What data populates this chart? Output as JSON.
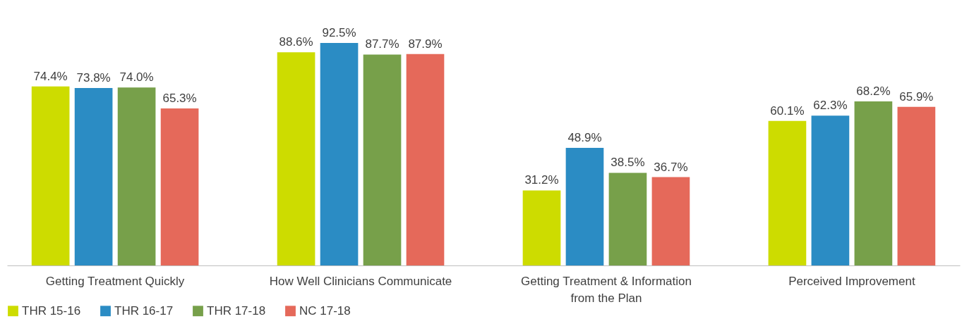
{
  "chart_data": {
    "type": "bar",
    "categories": [
      "Getting Treatment Quickly",
      "How Well Clinicians Communicate",
      "Getting Treatment & Information\nfrom the Plan",
      "Perceived Improvement"
    ],
    "series": [
      {
        "name": "THR 15-16",
        "color": "#cddc00",
        "values": [
          74.4,
          88.6,
          31.2,
          60.1
        ],
        "value_labels": [
          "74.4%",
          "88.6%",
          "31.2%",
          "60.1%"
        ]
      },
      {
        "name": "THR 16-17",
        "color": "#2b8cc4",
        "values": [
          73.8,
          92.5,
          48.9,
          62.3
        ],
        "value_labels": [
          "73.8%",
          "92.5%",
          "48.9%",
          "62.3%"
        ]
      },
      {
        "name": "THR 17-18",
        "color": "#77a04a",
        "values": [
          74.0,
          87.7,
          38.5,
          68.2
        ],
        "value_labels": [
          "74.0%",
          "87.7%",
          "38.5%",
          "68.2%"
        ]
      },
      {
        "name": "NC 17-18",
        "color": "#e5695a",
        "values": [
          65.3,
          87.9,
          36.7,
          65.9
        ],
        "value_labels": [
          "65.3%",
          "87.9%",
          "36.7%",
          "65.9%"
        ]
      }
    ],
    "tick_labels": "x",
    "legend": "bottom"
  }
}
